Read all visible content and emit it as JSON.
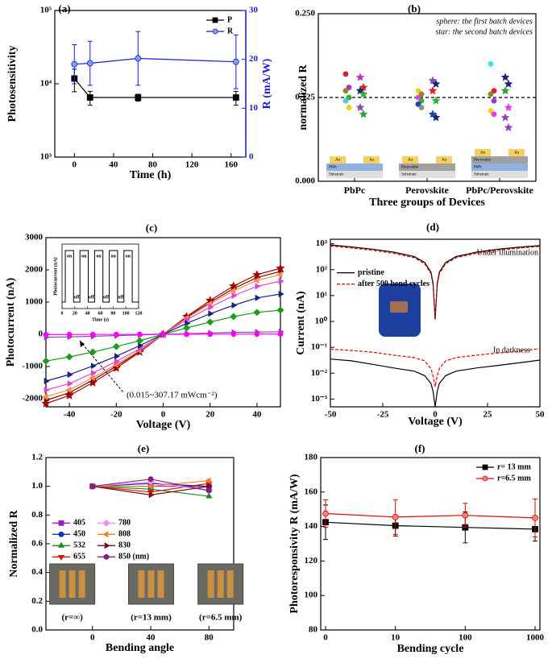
{
  "chart_data": [
    {
      "type": "line",
      "panel_label": "(a)",
      "xlabel": "Time (h)",
      "ylabel": "Photosensitivity",
      "y2label": "R (mA/W)",
      "y2color": "#1c1cd6",
      "x": [
        0,
        16,
        65,
        165
      ],
      "xlim": [
        -20,
        175
      ],
      "xticks": [
        0,
        40,
        80,
        120,
        160
      ],
      "ylog": true,
      "ylim": [
        1000,
        100000
      ],
      "yticks": [
        {
          "value": 1000,
          "label": "10³"
        },
        {
          "value": 10000,
          "label": "10⁴"
        },
        {
          "value": 100000,
          "label": "10⁵"
        }
      ],
      "y2lim": [
        0,
        30
      ],
      "y2ticks": [
        0,
        10,
        20,
        30
      ],
      "legend": "upper right",
      "series": [
        {
          "name": "P",
          "color": "#000000",
          "marker": "square",
          "values": [
            11800,
            6500,
            6500,
            6500
          ],
          "errors": [
            4000,
            1400,
            700,
            1400
          ]
        },
        {
          "name": "R",
          "color": "#1c1cd6",
          "fill": "#7f9fff",
          "marker": "circle",
          "axis": "y2",
          "values": [
            19,
            19.2,
            20.2,
            19.5
          ],
          "errors": [
            4,
            4.5,
            5.5,
            5.5
          ]
        }
      ]
    },
    {
      "type": "strip",
      "panel_label": "(b)",
      "xlabel": "Three groups of Devices",
      "ylabel": "normalized R",
      "categories": [
        "PbPc",
        "Perovskite",
        "PbPc/Perovskite"
      ],
      "ylim": [
        0,
        0.25
      ],
      "yticks": [
        {
          "value": 0,
          "label": "0.000"
        },
        {
          "value": 0.125,
          "label": "0.125"
        },
        {
          "value": 0.25,
          "label": "0.250"
        }
      ],
      "reference_line": 0.125,
      "annotations": [
        "sphere: the first batch devices",
        "star: the second batch devices"
      ],
      "groups": [
        {
          "spheres": {
            "values": [
              0.16,
              0.14,
              0.135,
              0.125,
              0.12,
              0.11
            ],
            "colors": [
              "#e02020",
              "#b030c0",
              "#8a8a20",
              "#30b030",
              "#40d0e0",
              "#f0d020"
            ]
          },
          "stars": {
            "values": [
              0.155,
              0.14,
              0.135,
              0.13,
              0.11,
              0.1
            ],
            "colors": [
              "#c030c0",
              "#e02020",
              "#1a237e",
              "#30b030",
              "#9040c0",
              "#30a030"
            ]
          },
          "au": "Au",
          "layers": [
            {
              "label": "PbPc",
              "color": "#8fb0e0"
            },
            {
              "label": "Substrate",
              "color": "#dedede"
            }
          ]
        },
        {
          "spheres": {
            "values": [
              0.135,
              0.13,
              0.125,
              0.12,
              0.115,
              0.11
            ],
            "colors": [
              "#f0d020",
              "#8a8a20",
              "#e040e0",
              "#30b030",
              "#2040c0",
              "#909090"
            ]
          },
          "stars": {
            "values": [
              0.15,
              0.145,
              0.135,
              0.12,
              0.1,
              0.095
            ],
            "colors": [
              "#9040c0",
              "#1a237e",
              "#e02020",
              "#30b030",
              "#2040c0",
              "#1a237e"
            ]
          },
          "au": "Au",
          "layers": [
            {
              "label": "Perovskite",
              "color": "#a0a0a0"
            },
            {
              "label": "Substrate",
              "color": "#dedede"
            }
          ]
        },
        {
          "spheres": {
            "values": [
              0.175,
              0.135,
              0.13,
              0.12,
              0.105,
              0.1
            ],
            "colors": [
              "#40e0e0",
              "#e02020",
              "#8a8a20",
              "#9040c0",
              "#f0d020",
              "#e040e0"
            ]
          },
          "stars": {
            "values": [
              0.155,
              0.145,
              0.135,
              0.11,
              0.095,
              0.08
            ],
            "colors": [
              "#1a237e",
              "#1a237e",
              "#30a030",
              "#e040e0",
              "#9040c0",
              "#9040c0"
            ]
          },
          "au": "Au",
          "layers": [
            {
              "label": "Perovskite",
              "color": "#a0a0a0"
            },
            {
              "label": "PbPc",
              "color": "#8fb0e0"
            },
            {
              "label": "Substrate",
              "color": "#dedede"
            }
          ]
        }
      ]
    },
    {
      "type": "line",
      "panel_label": "(c)",
      "xlabel": "Voltage (V)",
      "ylabel": "Photocurrent (nA)",
      "x": [
        -50,
        -40,
        -30,
        -20,
        -10,
        0,
        10,
        20,
        30,
        40,
        50
      ],
      "xlim": [
        -50,
        50
      ],
      "xticks": [
        -40,
        -20,
        0,
        20,
        40
      ],
      "ylim": [
        -2250,
        3000
      ],
      "yticks": [
        -2000,
        -1000,
        0,
        1000,
        2000,
        3000
      ],
      "annotation": "(0.015~307.17 mWcm⁻²)",
      "series": [
        {
          "color": "#b00000",
          "marker": "star",
          "values": [
            -2150,
            -1900,
            -1500,
            -1050,
            -550,
            0,
            550,
            1050,
            1500,
            1850,
            2050
          ]
        },
        {
          "color": "#7a1010",
          "marker": "triangle-right",
          "values": [
            -2050,
            -1810,
            -1420,
            -990,
            -530,
            0,
            530,
            990,
            1420,
            1760,
            1950
          ]
        },
        {
          "color": "#ff8c40",
          "marker": "triangle-left",
          "values": [
            -1940,
            -1720,
            -1350,
            -940,
            -500,
            0,
            500,
            940,
            1350,
            1670,
            1850
          ]
        },
        {
          "color": "#e040e0",
          "marker": "triangle-right",
          "values": [
            -1730,
            -1530,
            -1200,
            -840,
            -450,
            0,
            450,
            840,
            1200,
            1490,
            1650
          ]
        },
        {
          "color": "#1a237e",
          "marker": "triangle-right",
          "values": [
            -1450,
            -1250,
            -980,
            -680,
            -350,
            0,
            340,
            640,
            900,
            1130,
            1250
          ]
        },
        {
          "color": "#1a9e1a",
          "marker": "diamond",
          "values": [
            -830,
            -700,
            -550,
            -380,
            -200,
            0,
            200,
            380,
            550,
            680,
            750
          ]
        },
        {
          "color": "#9040c0",
          "marker": "triangle-right",
          "values": [
            -90,
            -80,
            -60,
            -40,
            -20,
            0,
            20,
            40,
            60,
            70,
            80
          ]
        },
        {
          "color": "#ff00ff",
          "marker": "circle",
          "values": [
            -10,
            -8,
            -6,
            -4,
            -2,
            0,
            2,
            4,
            6,
            8,
            10
          ]
        }
      ],
      "inset": {
        "xlabel": "Time (s)",
        "ylabel": "Photocurrent (nA)",
        "on_label": "on",
        "off_label": "off",
        "x": [
          0,
          5,
          5,
          18,
          18,
          28,
          28,
          41,
          41,
          51,
          51,
          64,
          64,
          74,
          74,
          87,
          87,
          97,
          97,
          110,
          110,
          120
        ],
        "values": [
          0,
          0,
          800,
          800,
          0,
          0,
          800,
          800,
          0,
          0,
          800,
          800,
          0,
          0,
          800,
          800,
          0,
          0,
          800,
          800,
          0,
          0
        ],
        "xlim": [
          0,
          120
        ],
        "xticks": [
          0,
          20,
          40,
          60,
          80,
          100,
          120
        ],
        "ylim": [
          -100,
          900
        ]
      }
    },
    {
      "type": "line",
      "panel_label": "(d)",
      "xlabel": "Voltage (V)",
      "ylabel": "Current (nA)",
      "x": [
        -50,
        -40,
        -30,
        -20,
        -10,
        -5,
        -2,
        -1,
        0,
        1,
        2,
        5,
        10,
        20,
        30,
        40,
        50
      ],
      "xlim": [
        -50,
        50
      ],
      "xticks": [
        -50,
        -25,
        0,
        25,
        50
      ],
      "ylog": true,
      "ylim": [
        0.0005,
        1500
      ],
      "yticks": [
        {
          "value": 0.001,
          "label": "10⁻³"
        },
        {
          "value": 0.01,
          "label": "10⁻²"
        },
        {
          "value": 0.1,
          "label": "10⁻¹"
        },
        {
          "value": 1,
          "label": "10⁰"
        },
        {
          "value": 10,
          "label": "10¹"
        },
        {
          "value": 100,
          "label": "10²"
        },
        {
          "value": 1000,
          "label": "10³"
        }
      ],
      "annotations": [
        "Under illumination",
        "In darkness"
      ],
      "legend": "center left",
      "series": [
        {
          "name": "pristine",
          "color": "#000000",
          "values": [
            900,
            760,
            620,
            480,
            320,
            190,
            80,
            30,
            1.2,
            30,
            80,
            190,
            320,
            480,
            620,
            740,
            850
          ],
          "dark": [
            0.035,
            0.03,
            0.022,
            0.016,
            0.012,
            0.008,
            0.004,
            0.002,
            0.0005,
            0.002,
            0.004,
            0.008,
            0.012,
            0.016,
            0.02,
            0.025,
            0.032
          ]
        },
        {
          "name": "after 500 bend cycles",
          "color": "#e00000",
          "dash": true,
          "values": [
            820,
            690,
            560,
            430,
            290,
            170,
            70,
            25,
            1.5,
            25,
            70,
            170,
            290,
            430,
            560,
            680,
            800
          ],
          "dark": [
            0.085,
            0.075,
            0.065,
            0.05,
            0.04,
            0.03,
            0.015,
            0.008,
            0.003,
            0.008,
            0.015,
            0.03,
            0.04,
            0.05,
            0.06,
            0.07,
            0.09
          ]
        }
      ]
    },
    {
      "type": "line",
      "panel_label": "(e)",
      "xlabel": "Bending angle",
      "ylabel": "Normalized R",
      "x": [
        0,
        40,
        80
      ],
      "xlim": [
        -32,
        97
      ],
      "xticks": [
        0,
        40,
        80
      ],
      "ylim": [
        0,
        1.2
      ],
      "yticks": [
        {
          "value": 0,
          "label": "0.0"
        },
        0.2,
        0.4,
        0.6,
        0.8,
        {
          "value": 1,
          "label": "1.0"
        },
        1.2
      ],
      "legend": "center left",
      "legend_columns": 2,
      "photo_captions": [
        "(r=∞)",
        "(r=13 mm)",
        "(r=6.5 mm)"
      ],
      "series": [
        {
          "name": "405",
          "color": "#9020c0",
          "marker": "square",
          "values": [
            1.0,
            1.0,
            1.0
          ]
        },
        {
          "name": "450",
          "color": "#1030c0",
          "marker": "circle",
          "values": [
            1.0,
            1.02,
            1.0
          ]
        },
        {
          "name": "532",
          "color": "#1a8a1a",
          "marker": "triangle-up",
          "values": [
            1.0,
            0.98,
            0.93
          ]
        },
        {
          "name": "655",
          "color": "#e01010",
          "marker": "triangle-down",
          "values": [
            1.0,
            0.96,
            1.02
          ]
        },
        {
          "name": "780",
          "color": "#f090f0",
          "marker": "diamond",
          "values": [
            1.0,
            1.03,
            0.97
          ]
        },
        {
          "name": "808",
          "color": "#f08020",
          "marker": "triangle-left",
          "values": [
            1.0,
            1.0,
            1.04
          ]
        },
        {
          "name": "830",
          "color": "#7a1010",
          "marker": "triangle-right",
          "values": [
            1.0,
            0.94,
            1.0
          ]
        },
        {
          "name": "850 (nm)",
          "color": "#802080",
          "marker": "hexagon",
          "values": [
            1.0,
            1.05,
            0.97
          ]
        }
      ]
    },
    {
      "type": "line",
      "panel_label": "(f)",
      "xlabel": "Bending cycle",
      "ylabel": "Photoresponsivity R (mA/W)",
      "categories": [
        "0",
        "10",
        "100",
        "1000"
      ],
      "ylim": [
        80,
        180
      ],
      "yticks": [
        80,
        100,
        120,
        140,
        160,
        180
      ],
      "legend": "upper right",
      "series": [
        {
          "name": "r= 13 mm",
          "color": "#000000",
          "marker": "square",
          "values": [
            142.5,
            140.5,
            139.5,
            138.5
          ],
          "errors": [
            10,
            6,
            9,
            7
          ]
        },
        {
          "name": "r=6.5 mm",
          "color": "#e00000",
          "fill": "#ff8080",
          "marker": "circle",
          "values": [
            147.5,
            145.5,
            146.5,
            145
          ],
          "errors": [
            8,
            10,
            7,
            11
          ]
        }
      ]
    }
  ]
}
